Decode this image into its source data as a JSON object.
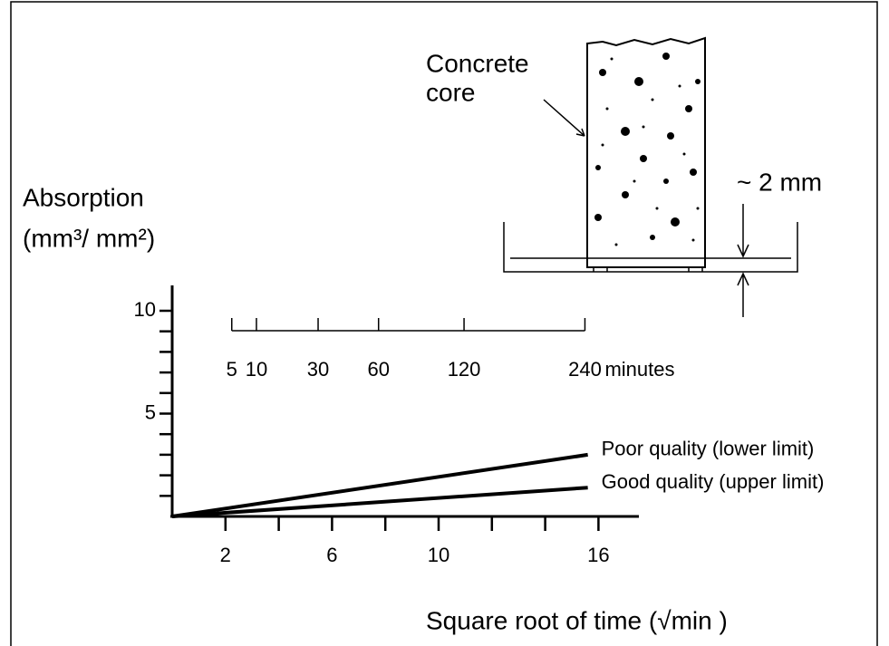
{
  "chart_data": {
    "type": "line",
    "ylabel": [
      "Absorption",
      "(mm³/ mm²)"
    ],
    "xlabel": "Square root of time (√min )",
    "xlim": [
      0,
      17.4
    ],
    "ylim": [
      0,
      11.2
    ],
    "xticks": [
      2,
      6,
      10,
      16
    ],
    "xminor": [
      4,
      8,
      12,
      14
    ],
    "yticks": [
      5,
      10
    ],
    "yminor": [
      1,
      2,
      3,
      4,
      6,
      7,
      8,
      9
    ],
    "minute_ticks": [
      5,
      10,
      30,
      60,
      120,
      240
    ],
    "minute_unit": "minutes",
    "x": [
      0,
      15.6
    ],
    "series": [
      {
        "name": "Poor quality (lower limit)",
        "color": "#000000",
        "values": [
          0,
          3.0
        ]
      },
      {
        "name": "Good quality (upper limit)",
        "color": "#000000",
        "values": [
          0,
          1.4
        ]
      }
    ]
  },
  "diagram": {
    "core_label": [
      "Concrete",
      "core"
    ],
    "gap_label": "~ 2 mm"
  }
}
